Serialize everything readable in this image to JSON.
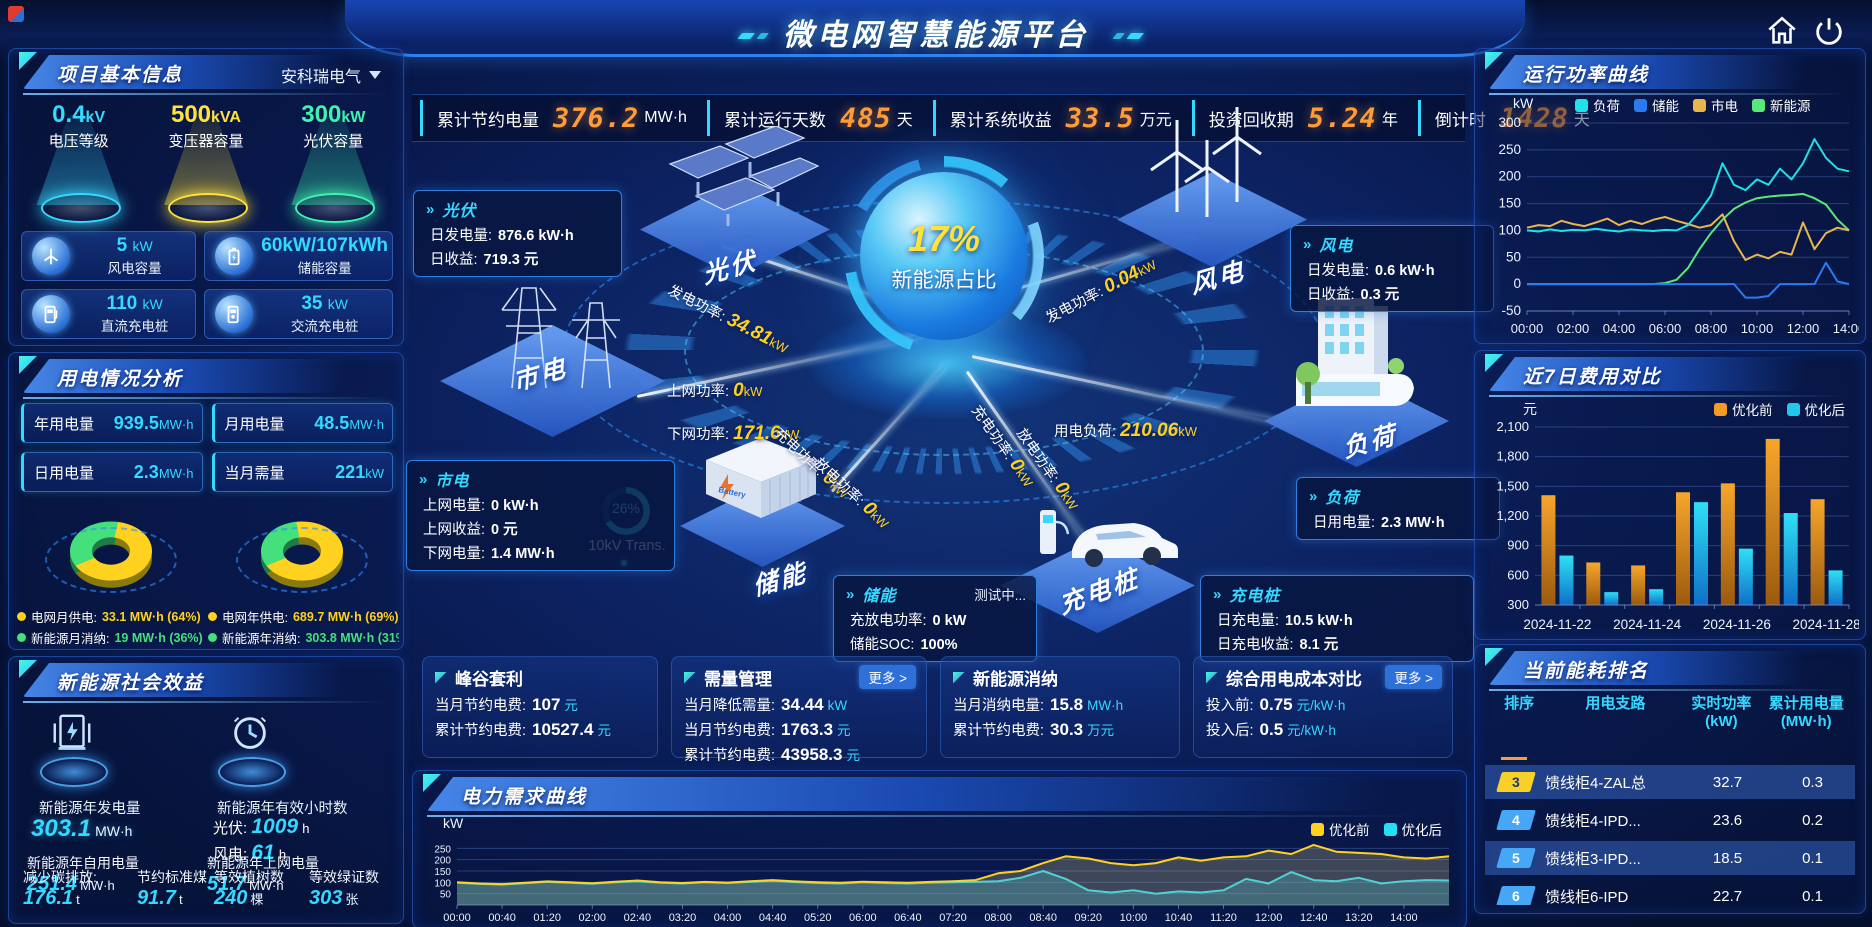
{
  "colors": {
    "accent": "#35d8ff",
    "orange_num": "#ff9c38",
    "yellow": "#ffd21f",
    "green": "#43e07c"
  },
  "header": {
    "title": "微电网智慧能源平台"
  },
  "kpi_bar": [
    {
      "label": "累计节约电量",
      "value": "376.2",
      "unit": "MW·h"
    },
    {
      "label": "累计运行天数",
      "value": "485",
      "unit": "天"
    },
    {
      "label": "累计系统收益",
      "value": "33.5",
      "unit": "万元"
    },
    {
      "label": "投资回收期",
      "value": "5.24",
      "unit": "年"
    },
    {
      "label": "倒计时",
      "value": "1428",
      "unit": "天"
    }
  ],
  "project_info": {
    "title": "项目基本信息",
    "company": "安科瑞电气",
    "spotlights": [
      {
        "value": "0.4",
        "unit": "kV",
        "label": "电压等级",
        "color": "#38d9ff"
      },
      {
        "value": "500",
        "unit": "kVA",
        "label": "变压器容量",
        "color": "#ffe23a"
      },
      {
        "value": "300",
        "unit": "kW",
        "label": "光伏容量",
        "color": "#3df5b0"
      }
    ],
    "capacities": [
      {
        "icon": "wind-turbine-icon",
        "value": "5",
        "unit": "kW",
        "label": "风电容量"
      },
      {
        "icon": "battery-icon",
        "value": "60kW/107kWh",
        "unit": "",
        "label": "储能容量"
      },
      {
        "icon": "dc-charger-icon",
        "value": "110",
        "unit": "kW",
        "label": "直流充电桩"
      },
      {
        "icon": "ac-charger-icon",
        "value": "35",
        "unit": "kW",
        "label": "交流充电桩"
      }
    ]
  },
  "power_usage": {
    "title": "用电情况分析",
    "stats": [
      {
        "label": "年用电量",
        "value": "939.5",
        "unit": "MW·h"
      },
      {
        "label": "月用电量",
        "value": "48.5",
        "unit": "MW·h"
      },
      {
        "label": "日用电量",
        "value": "2.3",
        "unit": "MW·h"
      },
      {
        "label": "当月需量",
        "value": "221",
        "unit": "kW"
      }
    ],
    "donuts": [
      {
        "slices": [
          64,
          36
        ],
        "colors": [
          "#ffd21f",
          "#43e07c"
        ],
        "legend": [
          {
            "label": "电网月供电:",
            "value": "33.1 MW·h (64%)",
            "color": "#ffd21f"
          },
          {
            "label": "新能源月消纳:",
            "value": "19 MW·h (36%)",
            "color": "#43e07c"
          }
        ]
      },
      {
        "slices": [
          69,
          31
        ],
        "colors": [
          "#ffd21f",
          "#43e07c"
        ],
        "legend": [
          {
            "label": "电网年供电:",
            "value": "689.7 MW·h (69%)",
            "color": "#ffd21f"
          },
          {
            "label": "新能源年消纳:",
            "value": "303.8 MW·h (31%)",
            "color": "#43e07c"
          }
        ]
      }
    ]
  },
  "social": {
    "title": "新能源社会效益",
    "gen_label": "新能源年发电量",
    "gen_value": "303.1",
    "gen_unit": "MW·h",
    "hours_label": "新能源年有效小时数",
    "hours_pv_label": "光伏:",
    "hours_pv_value": "1009",
    "hours_pv_unit": "h",
    "hours_wind_label": "风电:",
    "hours_wind_value": "61",
    "hours_wind_unit": "h",
    "overlap_stats": [
      {
        "label": "新能源年自用电量",
        "value": "251.4",
        "unit": "MW·h"
      },
      {
        "label": "减少碳排放:",
        "value": "176.1",
        "unit": "t"
      },
      {
        "label": "节约标准煤",
        "value": "91.7",
        "unit": "t"
      },
      {
        "label": "新能源年上网电量",
        "value": "51.7",
        "unit": "MW·h"
      },
      {
        "label": "等效植树数",
        "value": "240",
        "unit": "棵"
      },
      {
        "label": "等效绿证数",
        "value": "303",
        "unit": "张"
      }
    ]
  },
  "diagram": {
    "center_value": "17%",
    "center_label": "新能源占比",
    "transformer_percent": "26%",
    "transformer_label": "10kV Trans.",
    "nodes": [
      {
        "id": "pv",
        "label": "光伏"
      },
      {
        "id": "grid",
        "label": "市电"
      },
      {
        "id": "storage",
        "label": "储能"
      },
      {
        "id": "charger",
        "label": "充电桩"
      },
      {
        "id": "wind",
        "label": "风电"
      },
      {
        "id": "load",
        "label": "负荷"
      }
    ],
    "flows": [
      {
        "label": "发电功率:",
        "value": "34.81",
        "unit": "kW"
      },
      {
        "label": "上网功率:",
        "value": "0",
        "unit": "kW"
      },
      {
        "label": "下网功率:",
        "value": "171.6",
        "unit": "kW"
      },
      {
        "label": "发电功率:",
        "value": "0.04",
        "unit": "kW"
      },
      {
        "label": "用电负荷:",
        "value": "210.06",
        "unit": "kW"
      },
      {
        "label": "充电功率:",
        "value": "0",
        "unit": "kW"
      },
      {
        "label": "放电功率:",
        "value": "0",
        "unit": "kW"
      },
      {
        "label": "充电功率:",
        "value": "0",
        "unit": "kW"
      },
      {
        "label": "放电功率:",
        "value": "0",
        "unit": "kW"
      }
    ],
    "tooltips": {
      "pv": {
        "title": "光伏",
        "lines": [
          {
            "label": "日发电量:",
            "value": "876.6 kW·h"
          },
          {
            "label": "日收益:",
            "value": "719.3 元"
          }
        ]
      },
      "grid": {
        "title": "市电",
        "lines": [
          {
            "label": "上网电量:",
            "value": "0 kW·h"
          },
          {
            "label": "上网收益:",
            "value": "0 元"
          },
          {
            "label": "下网电量:",
            "value": "1.4 MW·h"
          }
        ]
      },
      "storage": {
        "title": "储能",
        "badge": "测试中...",
        "lines": [
          {
            "label": "充放电功率:",
            "value": "0 kW"
          },
          {
            "label": "储能SOC:",
            "value": "100%"
          }
        ]
      },
      "charger": {
        "title": "充电桩",
        "lines": [
          {
            "label": "日充电量:",
            "value": "10.5 kW·h"
          },
          {
            "label": "日充电收益:",
            "value": "8.1 元"
          }
        ]
      },
      "wind": {
        "title": "风电",
        "lines": [
          {
            "label": "日发电量:",
            "value": "0.6 kW·h"
          },
          {
            "label": "日收益:",
            "value": "0.3 元"
          }
        ]
      },
      "load": {
        "title": "负荷",
        "lines": [
          {
            "label": "日用电量:",
            "value": "2.3 MW·h"
          }
        ]
      }
    }
  },
  "metric_cards": [
    {
      "title": "峰谷套利",
      "more": "",
      "lines": [
        {
          "label": "当月节约电费:",
          "value": "107",
          "unit": "元"
        },
        {
          "label": "累计节约电费:",
          "value": "10527.4",
          "unit": "元"
        }
      ]
    },
    {
      "title": "需量管理",
      "more": "更多 >",
      "lines": [
        {
          "label": "当月降低需量:",
          "value": "34.44",
          "unit": "kW"
        },
        {
          "label": "当月节约电费:",
          "value": "1763.3",
          "unit": "元"
        },
        {
          "label": "累计节约电费:",
          "value": "43958.3",
          "unit": "元"
        }
      ]
    },
    {
      "title": "新能源消纳",
      "more": "",
      "lines": [
        {
          "label": "当月消纳电量:",
          "value": "15.8",
          "unit": "MW·h"
        },
        {
          "label": "累计节约电费:",
          "value": "30.3",
          "unit": "万元"
        }
      ]
    },
    {
      "title": "综合用电成本对比",
      "more": "更多 >",
      "lines": [
        {
          "label": "投入前:",
          "value": "0.75",
          "unit": "元/kW·h"
        },
        {
          "label": "投入后:",
          "value": "0.5",
          "unit": "元/kW·h"
        }
      ]
    }
  ],
  "ranking": {
    "title": "当前能耗排名",
    "columns": [
      "排序",
      "用电支路",
      "实时功率\n(kW)",
      "累计用电量\n(MW·h)"
    ],
    "rows": [
      {
        "rank": "3",
        "badge_color": "#f7d028",
        "rank_color": "#173a7a",
        "name": "馈线柜4-ZAL总",
        "power": "32.7",
        "energy": "0.3",
        "highlight": true
      },
      {
        "rank": "4",
        "badge_color": "#45a7f5",
        "rank_color": "#ffffff",
        "name": "馈线柜4-IPD...",
        "power": "23.6",
        "energy": "0.2",
        "highlight": false
      },
      {
        "rank": "5",
        "badge_color": "#45a7f5",
        "rank_color": "#ffffff",
        "name": "馈线柜3-IPD...",
        "power": "18.5",
        "energy": "0.1",
        "highlight": true
      },
      {
        "rank": "6",
        "badge_color": "#45a7f5",
        "rank_color": "#ffffff",
        "name": "馈线柜6-IPD",
        "power": "22.7",
        "energy": "0.1",
        "highlight": false
      }
    ]
  },
  "chart_data": [
    {
      "id": "run-power",
      "type": "line",
      "title": "运行功率曲线",
      "ylabel": "kW",
      "ylim": [
        -50,
        300
      ],
      "yticks": [
        -50,
        0,
        50,
        100,
        150,
        200,
        250,
        300
      ],
      "x_labels": [
        "00:00",
        "02:00",
        "04:00",
        "06:00",
        "08:00",
        "10:00",
        "12:00",
        "14:00"
      ],
      "x_label_every": 4,
      "legend_position": "top",
      "grid": true,
      "series": [
        {
          "name": "负荷",
          "color": "#1ee3e6",
          "values": [
            100,
            98,
            102,
            99,
            101,
            100,
            103,
            100,
            98,
            102,
            100,
            99,
            101,
            100,
            110,
            135,
            165,
            225,
            185,
            175,
            195,
            185,
            215,
            195,
            225,
            270,
            235,
            215,
            210
          ]
        },
        {
          "name": "储能",
          "color": "#2b7bf0",
          "values": [
            0,
            0,
            0,
            0,
            0,
            0,
            0,
            0,
            0,
            0,
            0,
            0,
            0,
            0,
            0,
            0,
            0,
            0,
            0,
            -25,
            -25,
            -22,
            0,
            0,
            0,
            0,
            40,
            5,
            0
          ]
        },
        {
          "name": "市电",
          "color": "#e8b64c",
          "values": [
            105,
            110,
            108,
            118,
            112,
            108,
            115,
            122,
            110,
            118,
            112,
            120,
            125,
            118,
            112,
            105,
            110,
            130,
            80,
            45,
            55,
            48,
            60,
            55,
            115,
            65,
            95,
            105,
            100
          ]
        },
        {
          "name": "新能源",
          "color": "#5ae87a",
          "values": [
            0,
            0,
            0,
            0,
            0,
            0,
            0,
            0,
            0,
            0,
            0,
            0,
            2,
            8,
            30,
            65,
            95,
            120,
            140,
            152,
            160,
            163,
            165,
            166,
            168,
            160,
            148,
            120,
            100
          ]
        }
      ]
    },
    {
      "id": "cost-compare",
      "type": "bar",
      "title": "近7日费用对比",
      "ylabel": "元",
      "ylim": [
        300,
        2100
      ],
      "yticks": [
        300,
        600,
        900,
        1200,
        1500,
        1800,
        2100
      ],
      "categories": [
        "2024-11-22",
        "2024-11-23",
        "2024-11-24",
        "2024-11-25",
        "2024-11-26",
        "2024-11-27",
        "2024-11-28"
      ],
      "xtick_indices": [
        0,
        2,
        4,
        6
      ],
      "legend_position": "top",
      "grid": true,
      "series": [
        {
          "name": "优化前",
          "color": "#f59a23",
          "values": [
            1410,
            730,
            700,
            1440,
            1530,
            1980,
            1370
          ]
        },
        {
          "name": "优化后",
          "color": "#23c8e8",
          "values": [
            800,
            430,
            460,
            1340,
            870,
            1230,
            650
          ]
        }
      ]
    },
    {
      "id": "demand-curve",
      "type": "line",
      "title": "电力需求曲线",
      "ylabel": "kW",
      "ylim": [
        0,
        300
      ],
      "yticks": [
        50,
        100,
        150,
        200,
        250
      ],
      "x_labels": [
        "00:00",
        "00:40",
        "01:20",
        "02:00",
        "02:40",
        "03:20",
        "04:00",
        "04:40",
        "05:20",
        "06:00",
        "06:40",
        "07:20",
        "08:00",
        "08:40",
        "09:20",
        "10:00",
        "10:40",
        "11:20",
        "12:00",
        "12:40",
        "13:20",
        "14:00"
      ],
      "x_label_every": 2,
      "legend_position": "top-right",
      "grid": true,
      "series": [
        {
          "name": "优化前",
          "color": "#ffd21f",
          "fill": "rgba(190,180,130,0.30)",
          "values": [
            100,
            95,
            92,
            98,
            104,
            100,
            96,
            103,
            108,
            100,
            97,
            102,
            99,
            105,
            110,
            104,
            100,
            98,
            103,
            100,
            98,
            102,
            105,
            110,
            140,
            150,
            185,
            215,
            205,
            185,
            175,
            185,
            210,
            195,
            210,
            215,
            240,
            225,
            265,
            235,
            230,
            225,
            210,
            205,
            215
          ]
        },
        {
          "name": "优化后",
          "color": "#23e0f5",
          "fill": "rgba(35,210,245,0.28)",
          "values": [
            98,
            93,
            90,
            96,
            102,
            98,
            94,
            100,
            105,
            98,
            95,
            100,
            97,
            102,
            107,
            101,
            97,
            95,
            100,
            97,
            95,
            99,
            100,
            102,
            105,
            120,
            150,
            115,
            65,
            55,
            65,
            50,
            60,
            55,
            65,
            115,
            95,
            145,
            110,
            105,
            120,
            95,
            105,
            110,
            108
          ]
        }
      ]
    }
  ]
}
